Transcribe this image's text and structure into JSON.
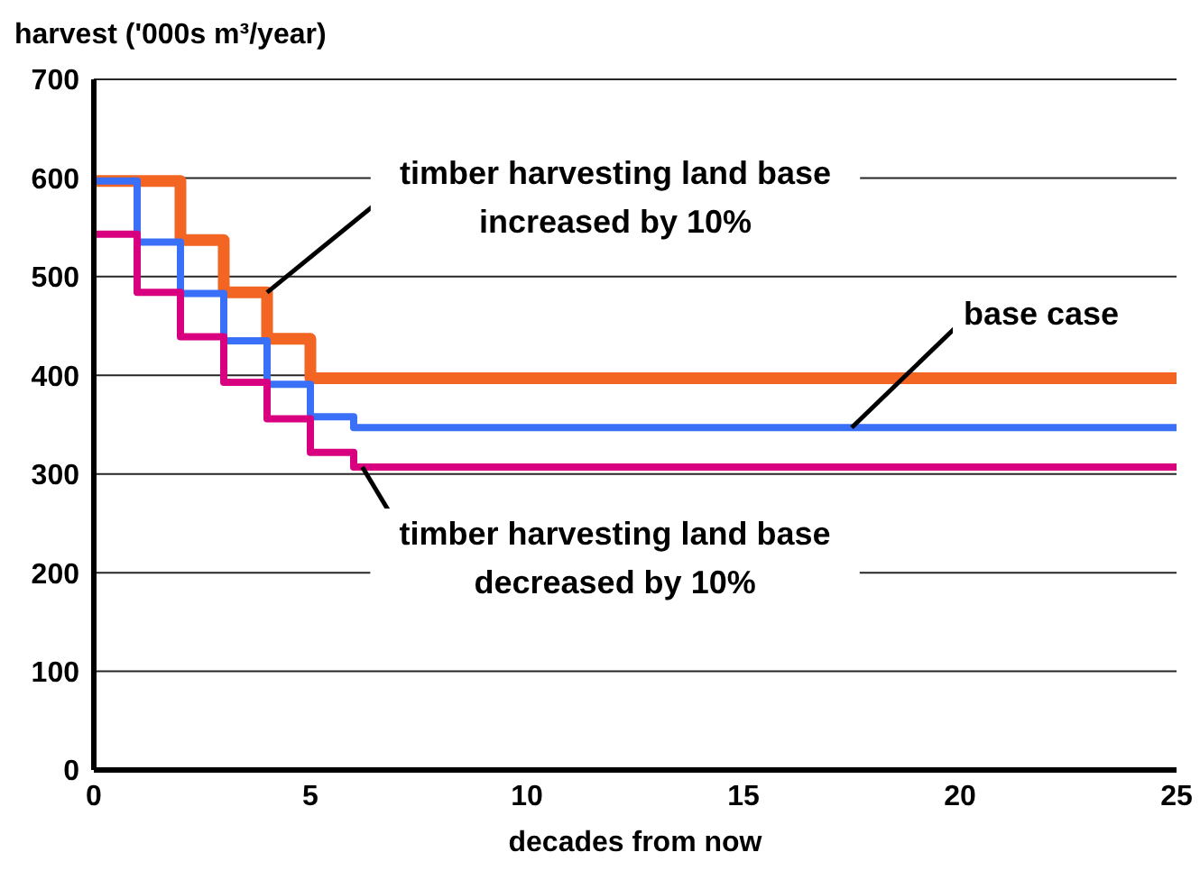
{
  "chart_data": {
    "type": "step",
    "ylabel": "harvest ('000s m³/year)",
    "xlabel": "decades from now",
    "xlim": [
      0,
      25
    ],
    "xticks": [
      0,
      5,
      10,
      15,
      20,
      25
    ],
    "ylim": [
      0,
      700
    ],
    "yticks": [
      0,
      100,
      200,
      300,
      400,
      500,
      600,
      700
    ],
    "grid": "y",
    "marker": "none",
    "line_style": "solid",
    "series": [
      {
        "color": "#f26522",
        "x": [
          0,
          2,
          3,
          4,
          5,
          25
        ],
        "values": [
          597,
          537,
          484,
          437,
          397,
          397
        ]
      },
      {
        "color": "#3a6ff7",
        "x": [
          0,
          1,
          2,
          3,
          4,
          5,
          6,
          25
        ],
        "values": [
          597,
          535,
          483,
          435,
          391,
          358,
          347,
          347
        ]
      },
      {
        "color": "#d9007f",
        "x": [
          0,
          1,
          2,
          3,
          4,
          5,
          6,
          25
        ],
        "values": [
          543,
          484,
          439,
          393,
          356,
          322,
          307,
          307
        ]
      }
    ],
    "annotations": [
      {
        "text": "timber harvesting land base increased by 10%",
        "x": 4,
        "y": 484
      },
      {
        "text": "base case",
        "x": 17.5,
        "y": 347
      },
      {
        "text": "timber harvesting land base decreased by 10%",
        "x": 6.2,
        "y": 307
      }
    ]
  }
}
